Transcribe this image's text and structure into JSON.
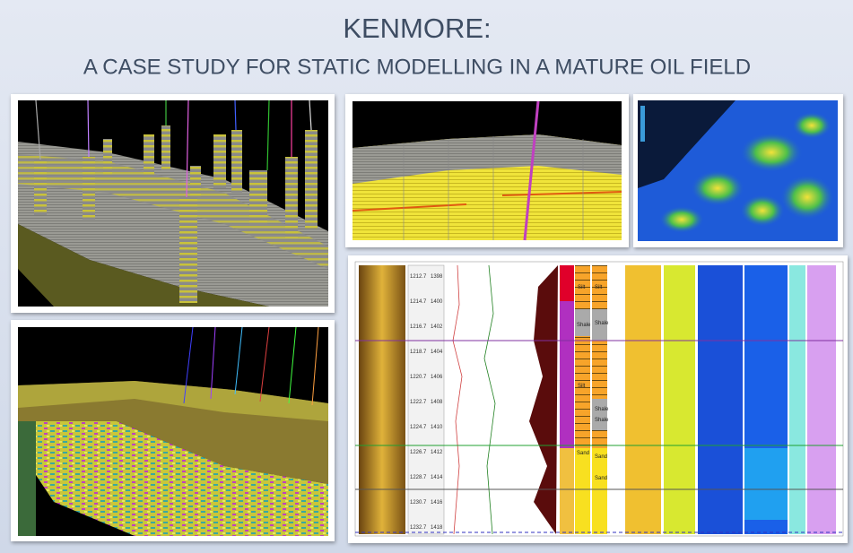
{
  "header": {
    "title": "KENMORE:",
    "subtitle": "A CASE STUDY FOR STATIC MODELLING IN A MATURE OIL FIELD"
  },
  "well_log": {
    "depths": [
      {
        "md": "1212.7",
        "tvd": "1398"
      },
      {
        "md": "1214.7",
        "tvd": "1400"
      },
      {
        "md": "1216.7",
        "tvd": "1402"
      },
      {
        "md": "1218.7",
        "tvd": "1404"
      },
      {
        "md": "1220.7",
        "tvd": "1406"
      },
      {
        "md": "1222.7",
        "tvd": "1408"
      },
      {
        "md": "1224.7",
        "tvd": "1410"
      },
      {
        "md": "1226.7",
        "tvd": "1412"
      },
      {
        "md": "1228.7",
        "tvd": "1414"
      },
      {
        "md": "1230.7",
        "tvd": "1416"
      },
      {
        "md": "1232.7",
        "tvd": "1418"
      }
    ],
    "lithology_labels": [
      "Silt",
      "Silt",
      "Shale",
      "Shale",
      "Silt",
      "Shale",
      "Shale",
      "Sand",
      "Sand",
      "Sand"
    ]
  }
}
